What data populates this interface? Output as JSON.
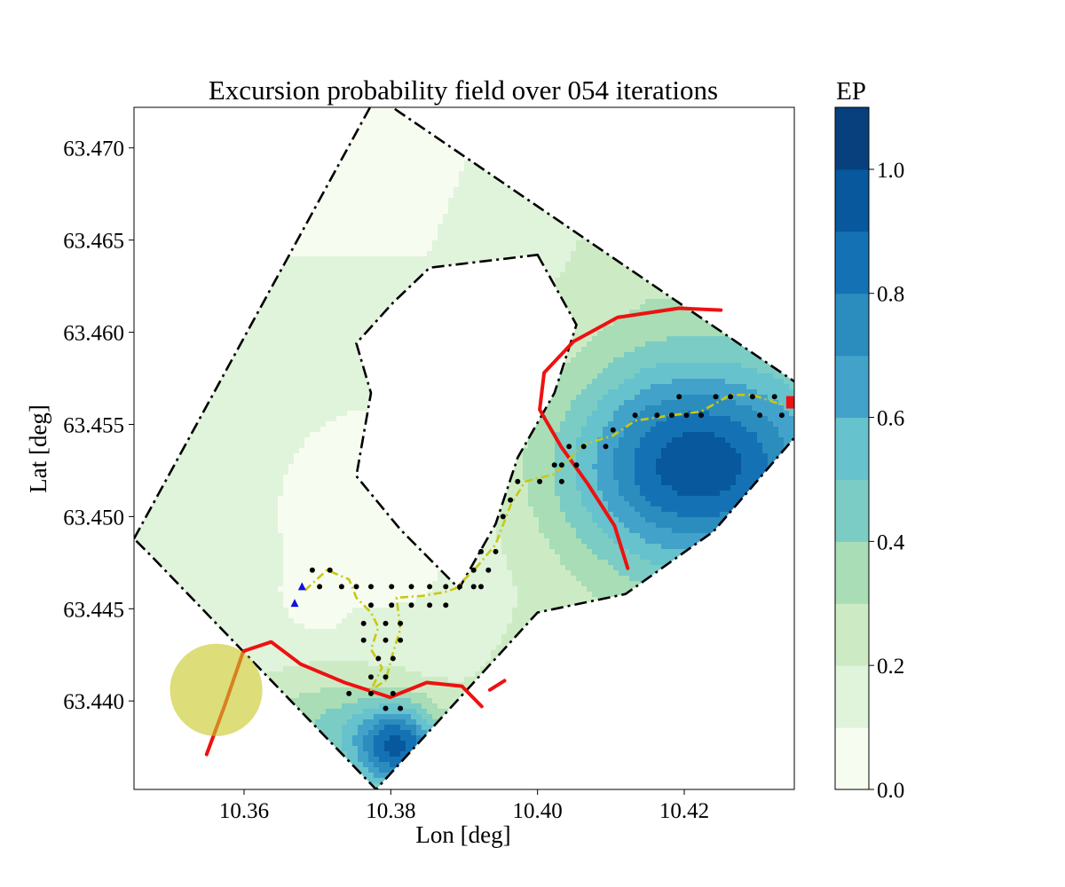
{
  "chart_data": {
    "type": "heatmap",
    "title": "Excursion probability field over 054 iterations",
    "xlabel": "Lon [deg]",
    "ylabel": "Lat [deg]",
    "xlim": [
      10.345,
      10.435
    ],
    "ylim": [
      63.4352,
      63.4722
    ],
    "x_ticks": [
      10.36,
      10.38,
      10.4,
      10.42
    ],
    "x_tick_labels": [
      "10.36",
      "10.38",
      "10.40",
      "10.42"
    ],
    "y_ticks": [
      63.44,
      63.445,
      63.45,
      63.455,
      63.46,
      63.465,
      63.47
    ],
    "y_tick_labels": [
      "63.440",
      "63.445",
      "63.450",
      "63.455",
      "63.460",
      "63.465",
      "63.470"
    ],
    "grid": false,
    "colorbar": {
      "label": "EP",
      "levels": [
        0.0,
        0.1,
        0.2,
        0.3,
        0.4,
        0.5,
        0.6,
        0.7,
        0.8,
        0.9,
        1.0,
        1.1
      ],
      "colors": [
        "#f7fcf0",
        "#e0f3db",
        "#ccebc5",
        "#a8ddb5",
        "#7bccc4",
        "#66c2cc",
        "#43a2ca",
        "#2b8cbe",
        "#1472b4",
        "#08589e",
        "#08407e"
      ],
      "tick_values": [
        0.0,
        0.2,
        0.4,
        0.6,
        0.8,
        1.0
      ],
      "tick_labels": [
        "0.0",
        "0.2",
        "0.4",
        "0.6",
        "0.8",
        "1.0"
      ]
    },
    "boundary": {
      "style": "dash-dot",
      "color": "#000000",
      "outer": [
        [
          10.345,
          63.4488
        ],
        [
          10.378,
          63.4728
        ],
        [
          10.4355,
          63.4572
        ],
        [
          10.4355,
          63.4545
        ],
        [
          10.424,
          63.4492
        ],
        [
          10.412,
          63.4458
        ],
        [
          10.4,
          63.4448
        ],
        [
          10.378,
          63.4352
        ],
        [
          10.3475,
          63.4478
        ]
      ],
      "island": [
        [
          10.4,
          63.4642
        ],
        [
          10.4053,
          63.4604
        ],
        [
          10.4023,
          63.4567
        ],
        [
          10.3973,
          63.4532
        ],
        [
          10.3943,
          63.4496
        ],
        [
          10.3893,
          63.4461
        ],
        [
          10.3813,
          63.4493
        ],
        [
          10.3753,
          63.4522
        ],
        [
          10.3773,
          63.4567
        ],
        [
          10.3753,
          63.4594
        ],
        [
          10.3803,
          63.4616
        ],
        [
          10.3853,
          63.4635
        ]
      ]
    },
    "threshold_contour": {
      "color": "#ee1111",
      "level": 0.5,
      "segments": [
        [
          [
            10.4123,
            63.4472
          ],
          [
            10.4105,
            63.4495
          ],
          [
            10.4068,
            63.4518
          ],
          [
            10.4032,
            63.4538
          ],
          [
            10.4003,
            63.4558
          ],
          [
            10.4009,
            63.4578
          ],
          [
            10.4049,
            63.4595
          ],
          [
            10.4109,
            63.4608
          ],
          [
            10.4193,
            63.4613
          ],
          [
            10.425,
            63.4612
          ]
        ],
        [
          [
            10.3549,
            63.4371
          ],
          [
            10.3574,
            63.4398
          ],
          [
            10.3599,
            63.4427
          ],
          [
            10.3637,
            63.4432
          ],
          [
            10.3677,
            63.442
          ],
          [
            10.3737,
            63.441
          ],
          [
            10.3799,
            63.4402
          ],
          [
            10.3849,
            63.441
          ],
          [
            10.3897,
            63.4408
          ],
          [
            10.3924,
            63.4397
          ]
        ],
        [
          [
            10.3935,
            63.4406
          ],
          [
            10.3955,
            63.4411
          ]
        ]
      ]
    },
    "sampling_locations": [
      [
        10.3693,
        63.4471
      ],
      [
        10.3703,
        63.4462
      ],
      [
        10.3717,
        63.4471
      ],
      [
        10.3733,
        63.4462
      ],
      [
        10.3753,
        63.4462
      ],
      [
        10.3773,
        63.4462
      ],
      [
        10.3801,
        63.4462
      ],
      [
        10.3828,
        63.4462
      ],
      [
        10.3853,
        63.4462
      ],
      [
        10.3875,
        63.4462
      ],
      [
        10.3894,
        63.4462
      ],
      [
        10.3773,
        63.4452
      ],
      [
        10.3801,
        63.4452
      ],
      [
        10.3828,
        63.4452
      ],
      [
        10.3853,
        63.4452
      ],
      [
        10.3875,
        63.4452
      ],
      [
        10.3763,
        63.4442
      ],
      [
        10.3793,
        63.4442
      ],
      [
        10.3813,
        63.4442
      ],
      [
        10.3763,
        63.4433
      ],
      [
        10.3793,
        63.4433
      ],
      [
        10.3813,
        63.4433
      ],
      [
        10.3783,
        63.4423
      ],
      [
        10.3803,
        63.4423
      ],
      [
        10.3773,
        63.4413
      ],
      [
        10.3793,
        63.4413
      ],
      [
        10.3743,
        63.4404
      ],
      [
        10.3773,
        63.4404
      ],
      [
        10.3803,
        63.4404
      ],
      [
        10.3793,
        63.4396
      ],
      [
        10.3813,
        63.4396
      ],
      [
        10.3913,
        63.4471
      ],
      [
        10.3933,
        63.4471
      ],
      [
        10.3923,
        63.4481
      ],
      [
        10.3943,
        63.4481
      ],
      [
        10.3913,
        63.4462
      ],
      [
        10.3923,
        63.4462
      ],
      [
        10.3953,
        63.45
      ],
      [
        10.3963,
        63.4509
      ],
      [
        10.3973,
        63.4519
      ],
      [
        10.4003,
        63.4519
      ],
      [
        10.4033,
        63.4519
      ],
      [
        10.4023,
        63.4528
      ],
      [
        10.4033,
        63.4528
      ],
      [
        10.4043,
        63.4538
      ],
      [
        10.4053,
        63.4528
      ],
      [
        10.4063,
        63.4538
      ],
      [
        10.4093,
        63.4538
      ],
      [
        10.4103,
        63.4547
      ],
      [
        10.4133,
        63.4555
      ],
      [
        10.4163,
        63.4555
      ],
      [
        10.4183,
        63.4555
      ],
      [
        10.4203,
        63.4555
      ],
      [
        10.4223,
        63.4555
      ],
      [
        10.4193,
        63.4565
      ],
      [
        10.4243,
        63.4565
      ],
      [
        10.4263,
        63.4565
      ],
      [
        10.4293,
        63.4565
      ],
      [
        10.4323,
        63.4565
      ],
      [
        10.4303,
        63.4555
      ],
      [
        10.4333,
        63.4555
      ]
    ],
    "trajectory": {
      "color": "#c8c814",
      "style": "dash-dot",
      "points": [
        [
          10.3683,
          63.446
        ],
        [
          10.3713,
          63.4471
        ],
        [
          10.3743,
          63.4466
        ],
        [
          10.3753,
          63.4456
        ],
        [
          10.3773,
          63.4448
        ],
        [
          10.3783,
          63.444
        ],
        [
          10.3773,
          63.4428
        ],
        [
          10.3788,
          63.4418
        ],
        [
          10.3773,
          63.4406
        ],
        [
          10.3793,
          63.4411
        ],
        [
          10.3803,
          63.4426
        ],
        [
          10.3813,
          63.4439
        ],
        [
          10.3808,
          63.4456
        ],
        [
          10.3843,
          63.4457
        ],
        [
          10.3873,
          63.4459
        ],
        [
          10.3888,
          63.4461
        ],
        [
          10.3918,
          63.4473
        ],
        [
          10.3943,
          63.4485
        ],
        [
          10.3963,
          63.4506
        ],
        [
          10.3983,
          63.4519
        ],
        [
          10.4023,
          63.4523
        ],
        [
          10.4043,
          63.4531
        ],
        [
          10.4063,
          63.4539
        ],
        [
          10.4103,
          63.4544
        ],
        [
          10.4133,
          63.4552
        ],
        [
          10.4183,
          63.4555
        ],
        [
          10.4223,
          63.4557
        ],
        [
          10.4263,
          63.4566
        ],
        [
          10.4293,
          63.4566
        ],
        [
          10.4323,
          63.4562
        ],
        [
          10.4343,
          63.456
        ]
      ]
    },
    "start_markers": [
      [
        10.3669,
        63.4453
      ],
      [
        10.3679,
        63.4462
      ]
    ],
    "end_marker": [
      10.4345,
      63.4562
    ],
    "circle_marker": {
      "center": [
        10.3562,
        63.4406
      ],
      "radius_deg_lon": 0.0063,
      "color": "#c8c828"
    }
  }
}
